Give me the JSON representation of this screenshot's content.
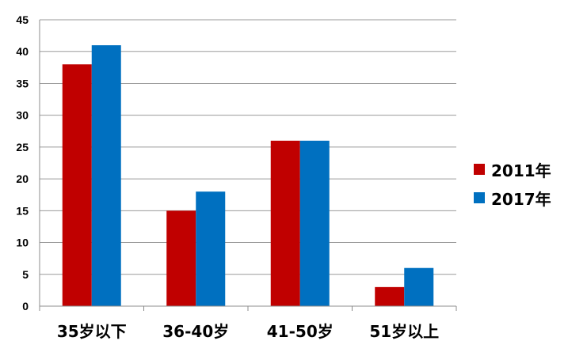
{
  "chart_data": {
    "type": "bar",
    "categories": [
      "35岁以下",
      "36-40岁",
      "41-50岁",
      "51岁以上"
    ],
    "series": [
      {
        "name": "2011年",
        "values": [
          38,
          15,
          26,
          3
        ],
        "color": "#C00000"
      },
      {
        "name": "2017年",
        "values": [
          41,
          18,
          26,
          6
        ],
        "color": "#0070C0"
      }
    ],
    "title": "",
    "xlabel": "",
    "ylabel": "",
    "ylim": [
      0,
      45
    ],
    "yticks": [
      "0",
      "5",
      "10",
      "15",
      "20",
      "25",
      "30",
      "35",
      "40",
      "45"
    ],
    "grid": true,
    "legend_position": "right"
  }
}
